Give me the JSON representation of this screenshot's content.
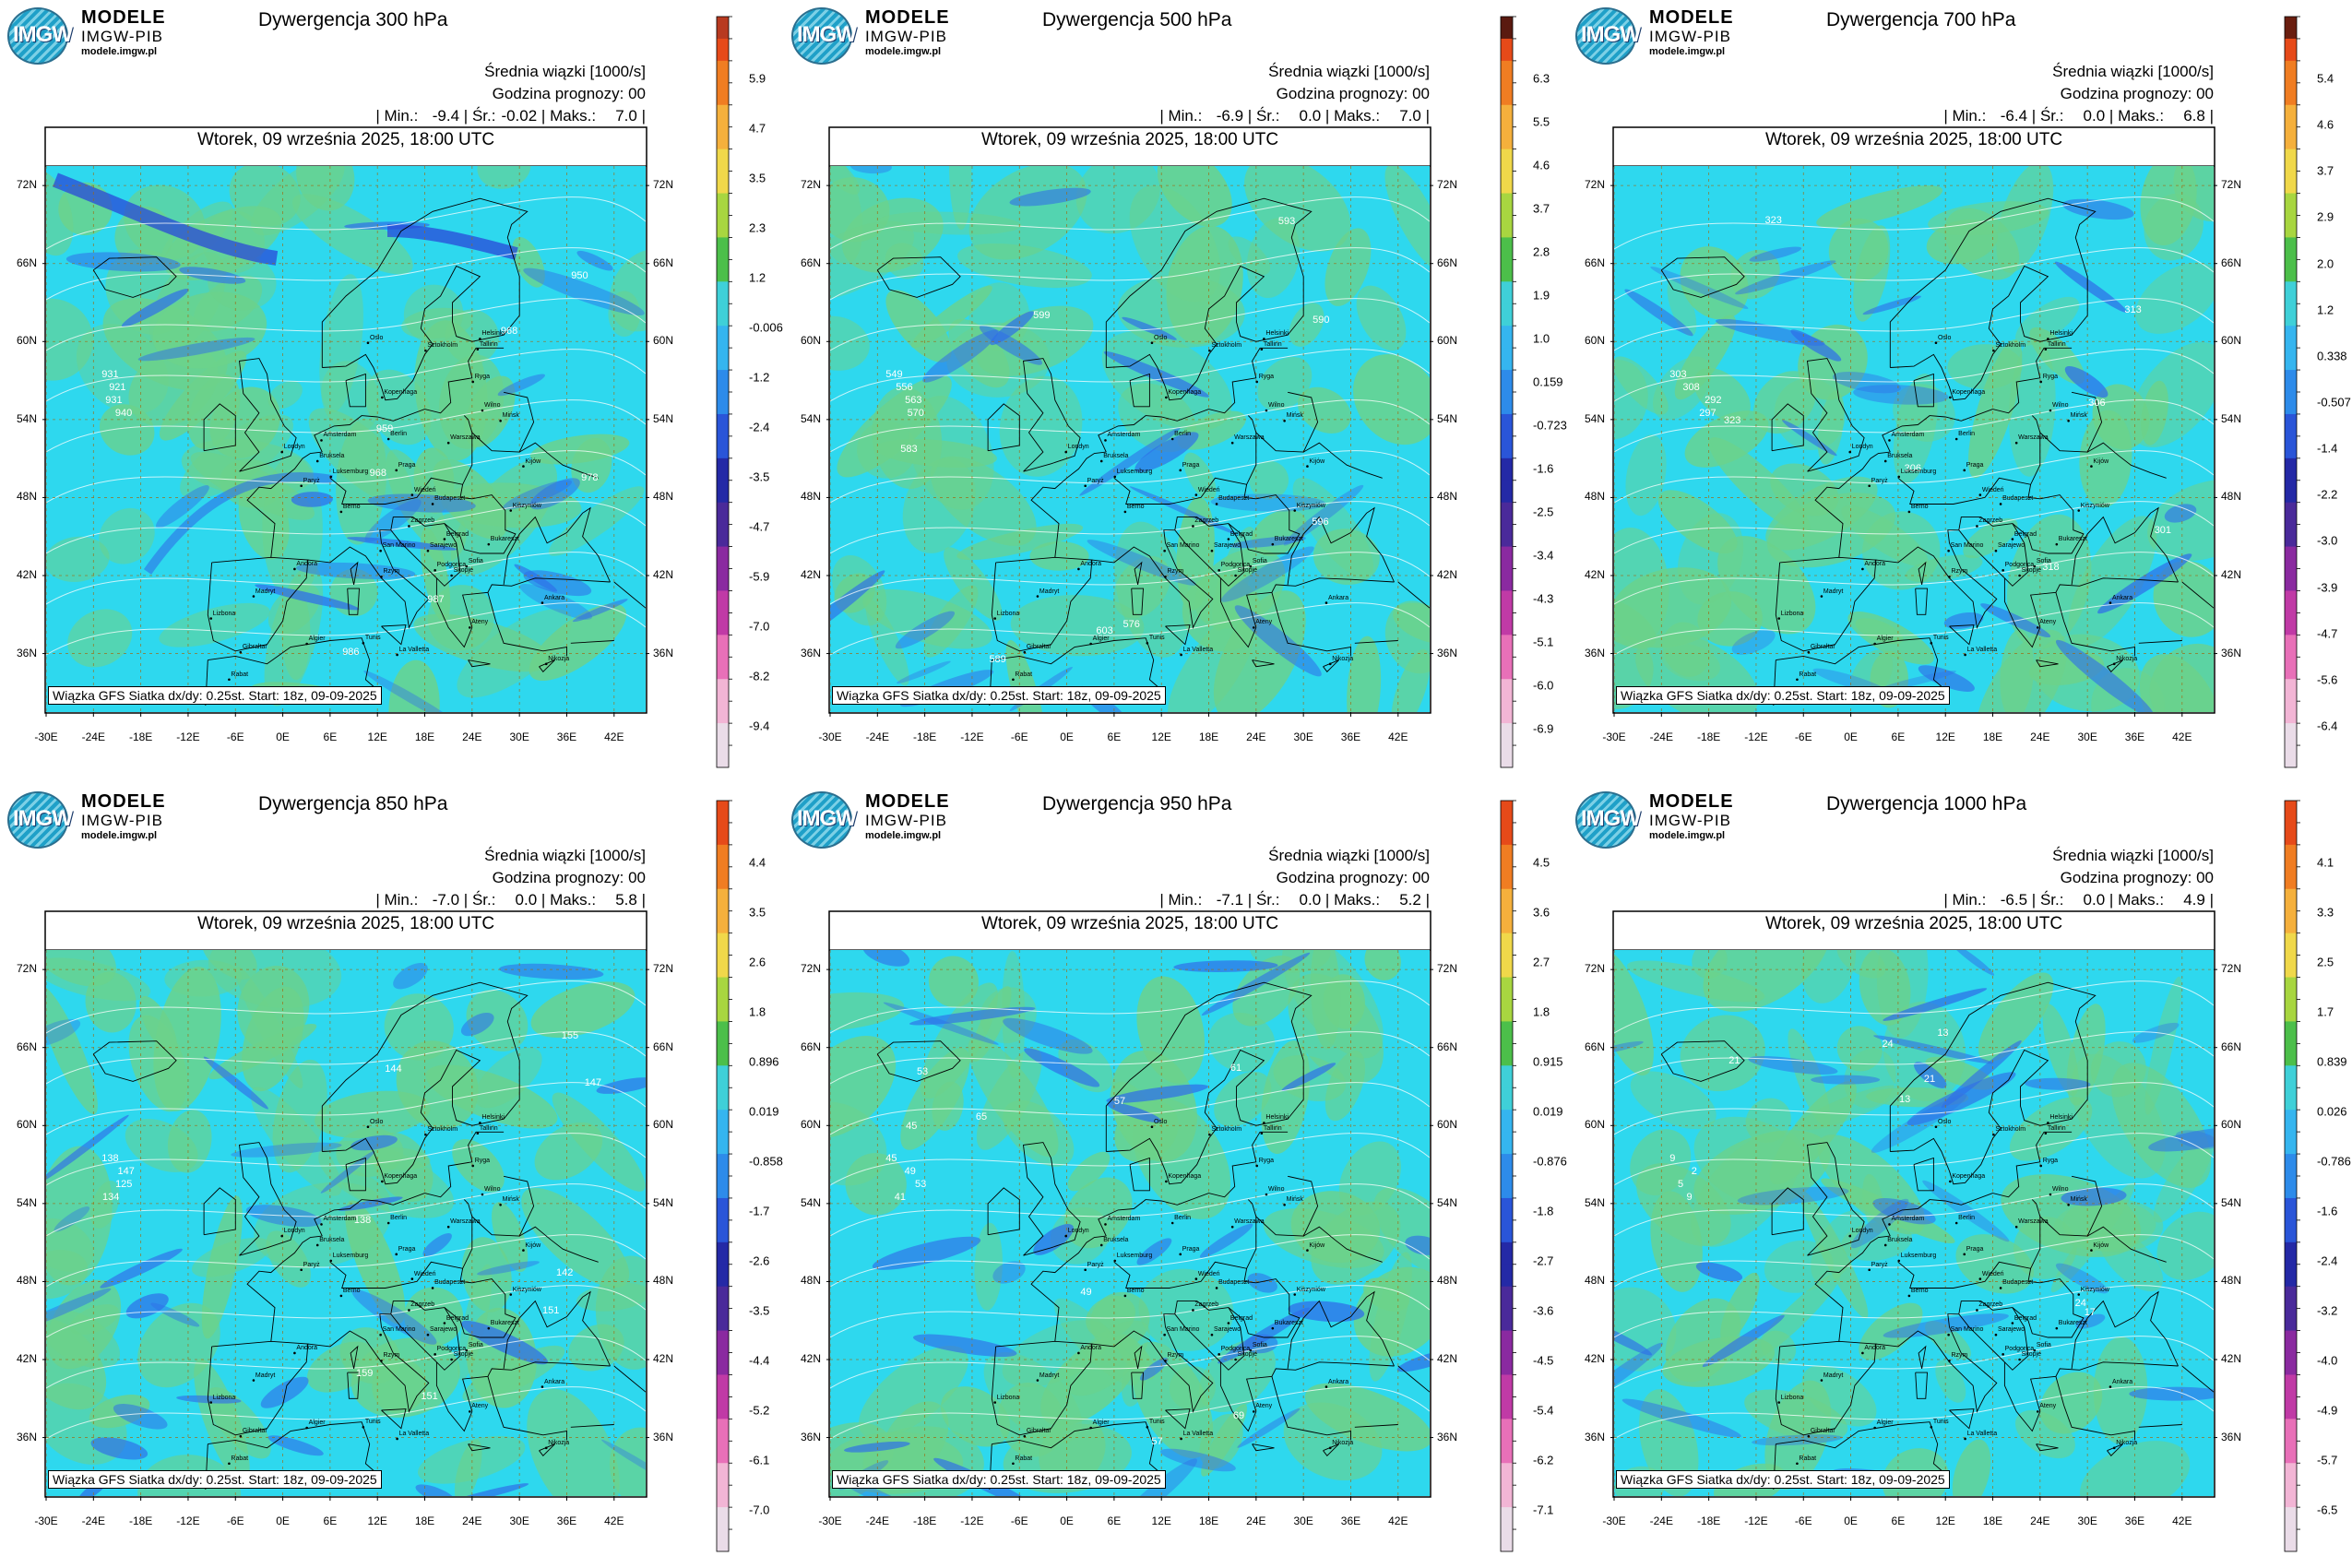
{
  "common": {
    "logo_title": "MODELE",
    "logo_subtitle": "IMGW-PIB",
    "logo_url": "modele.imgw.pl",
    "logo_mark": "IMGW",
    "mean_label": "Średnia wiązki [1000/s]",
    "forecast_hour_label": "Godzina prognozy: 00",
    "min_label": "Min.:",
    "mean_short_label": "Śr.:",
    "max_label": "Maks.:",
    "date_line": "Wtorek, 09 września 2025, 18:00 UTC",
    "footer": "Wiązka GFS Siatka dx/dy: 0.25st. Start: 18z, 09-09-2025",
    "lat_labels": [
      "72N",
      "66N",
      "60N",
      "54N",
      "48N",
      "42N",
      "36N"
    ],
    "lon_labels": [
      "-30E",
      "-24E",
      "-18E",
      "-12E",
      "-6E",
      "0E",
      "6E",
      "12E",
      "18E",
      "24E",
      "30E",
      "36E",
      "42E"
    ],
    "cities": [
      "Oslo",
      "Sztokholm",
      "Helsinki",
      "Tallinn",
      "Ryga",
      "Kopenhaga",
      "Wilno",
      "Mińsk",
      "Amsterdam",
      "Londyn",
      "Berlin",
      "Warszawa",
      "Bruksela",
      "Luksemburg",
      "Praga",
      "Kijów",
      "Paryż",
      "Wiedeń",
      "Berno",
      "Kiszyniów",
      "Budapeszt",
      "Zagrzeb",
      "Belgrad",
      "Bukareszt",
      "Andora",
      "San Marino",
      "Sarajewo",
      "Sofia",
      "Podgorica",
      "Skopje",
      "Madryt",
      "Rzym",
      "Ateny",
      "Ankara",
      "Lizbona",
      "Gibraltar",
      "Algier",
      "Tunis",
      "La Valletta",
      "Rabat",
      "Nikozja"
    ],
    "colors": {
      "field_green": "#6cd28a",
      "field_cyan": "#2ed8ee",
      "field_blue": "#2f6fe8",
      "frame": "#000000"
    }
  },
  "panels": [
    {
      "title": "Dywergencja 300 hPa",
      "min": "-9.4",
      "mean": "-0.02",
      "max": "7.0",
      "colorbar_ticks": [
        "5.9",
        "4.7",
        "3.5",
        "2.3",
        "1.2",
        "-0.006",
        "-1.2",
        "-2.4",
        "-3.5",
        "-4.7",
        "-5.9",
        "-7.0",
        "-8.2",
        "-9.4"
      ],
      "contour_labels": [
        "931",
        "921",
        "931",
        "940",
        "950",
        "959",
        "968",
        "978",
        "987",
        "968",
        "986"
      ]
    },
    {
      "title": "Dywergencja 500 hPa",
      "min": "-6.9",
      "mean": "0.0",
      "max": "7.0",
      "colorbar_ticks": [
        "6.3",
        "5.5",
        "4.6",
        "3.7",
        "2.8",
        "1.9",
        "1.0",
        "0.159",
        "-0.723",
        "-1.6",
        "-2.5",
        "-3.4",
        "-4.3",
        "-5.1",
        "-6.0",
        "-6.9"
      ],
      "contour_labels": [
        "549",
        "556",
        "563",
        "570",
        "576",
        "583",
        "590",
        "596",
        "603",
        "589",
        "599",
        "593"
      ]
    },
    {
      "title": "Dywergencja 700 hPa",
      "min": "-6.4",
      "mean": "0.0",
      "max": "6.8",
      "colorbar_ticks": [
        "5.4",
        "4.6",
        "3.7",
        "2.9",
        "2.0",
        "1.2",
        "0.338",
        "-0.507",
        "-1.4",
        "-2.2",
        "-3.0",
        "-3.9",
        "-4.7",
        "-5.6",
        "-6.4"
      ],
      "contour_labels": [
        "303",
        "308",
        "292",
        "297",
        "301",
        "306",
        "313",
        "318",
        "323",
        "306",
        "323"
      ]
    },
    {
      "title": "Dywergencja 850 hPa",
      "min": "-7.0",
      "mean": "0.0",
      "max": "5.8",
      "colorbar_ticks": [
        "4.4",
        "3.5",
        "2.6",
        "1.8",
        "0.896",
        "0.019",
        "-0.858",
        "-1.7",
        "-2.6",
        "-3.5",
        "-4.4",
        "-5.2",
        "-6.1",
        "-7.0"
      ],
      "contour_labels": [
        "138",
        "147",
        "125",
        "134",
        "138",
        "142",
        "147",
        "151",
        "155",
        "159",
        "151",
        "144"
      ]
    },
    {
      "title": "Dywergencja 950 hPa",
      "min": "-7.1",
      "mean": "0.0",
      "max": "5.2",
      "colorbar_ticks": [
        "4.5",
        "3.6",
        "2.7",
        "1.8",
        "0.915",
        "0.019",
        "-0.876",
        "-1.8",
        "-2.7",
        "-3.6",
        "-4.5",
        "-5.4",
        "-6.2",
        "-7.1"
      ],
      "contour_labels": [
        "45",
        "49",
        "53",
        "41",
        "45",
        "49",
        "53",
        "57",
        "61",
        "65",
        "69",
        "57"
      ]
    },
    {
      "title": "Dywergencja 1000 hPa",
      "min": "-6.5",
      "mean": "0.0",
      "max": "4.9",
      "colorbar_ticks": [
        "4.1",
        "3.3",
        "2.5",
        "1.7",
        "0.839",
        "0.026",
        "-0.786",
        "-1.6",
        "-2.4",
        "-3.2",
        "-4.0",
        "-4.9",
        "-5.7",
        "-6.5"
      ],
      "contour_labels": [
        "9",
        "2",
        "5",
        "9",
        "13",
        "17",
        "21",
        "24",
        "13",
        "24",
        "21"
      ]
    }
  ]
}
